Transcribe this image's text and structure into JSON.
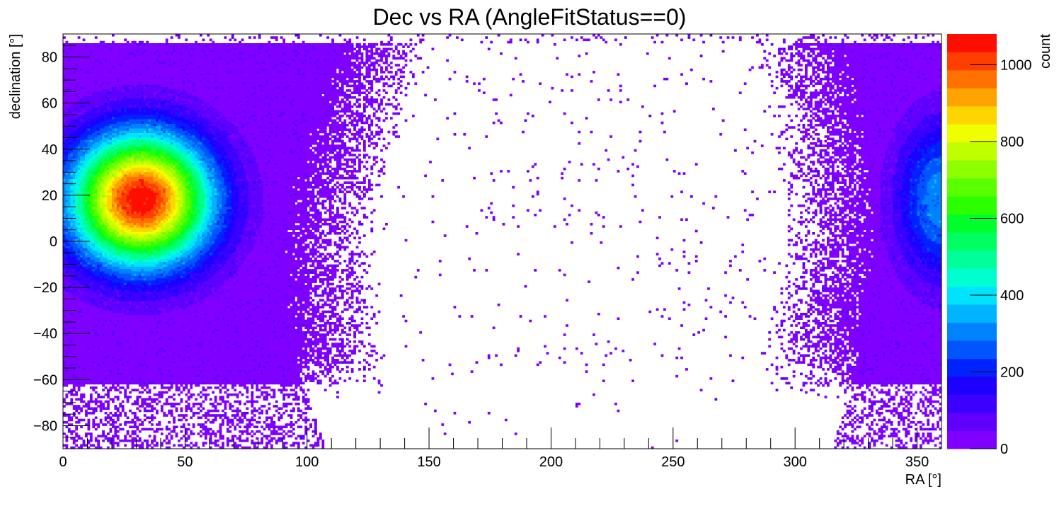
{
  "chart_data": {
    "type": "heatmap",
    "title": "Dec vs RA (AngleFitStatus==0)",
    "xlabel": "RA [°]",
    "ylabel": "declination [°]",
    "zlabel": "count",
    "xlim": [
      0,
      360
    ],
    "ylim": [
      -90,
      90
    ],
    "zlim": [
      0,
      1080
    ],
    "x_ticks": [
      0,
      50,
      100,
      150,
      200,
      250,
      300,
      350
    ],
    "y_ticks": [
      -80,
      -60,
      -40,
      -20,
      0,
      20,
      40,
      60,
      80
    ],
    "z_ticks": [
      0,
      200,
      400,
      600,
      800,
      1000
    ],
    "x_tick_labels": [
      "0",
      "50",
      "100",
      "150",
      "200",
      "250",
      "300",
      "350"
    ],
    "y_tick_labels": [
      "−80",
      "−60",
      "−40",
      "−20",
      "0",
      "20",
      "40",
      "60",
      "80"
    ],
    "z_tick_labels": [
      "0",
      "200",
      "400",
      "600",
      "800",
      "1000"
    ],
    "palette": [
      "#8000ff",
      "#5f00ff",
      "#3b00ff",
      "#1d00ff",
      "#0022ff",
      "#0055ff",
      "#0082ff",
      "#00b4ff",
      "#00e3ff",
      "#00ffcf",
      "#00ff98",
      "#00ff61",
      "#00ff2a",
      "#2cff00",
      "#5aff00",
      "#8eff00",
      "#c0ff00",
      "#f0ff00",
      "#ffd500",
      "#ffa300",
      "#ff7100",
      "#ff3f00",
      "#ff0e00"
    ],
    "hot_spot": {
      "ra": 32,
      "dec": 18,
      "peak_count": 1080
    },
    "secondary_spot": {
      "ra": 360,
      "dec": 18
    },
    "populated_region": "low RA (0–130°) and high RA (300–360°); empty band centred near RA ≈ 215°",
    "grid": false,
    "legend": "colorbar-right"
  }
}
